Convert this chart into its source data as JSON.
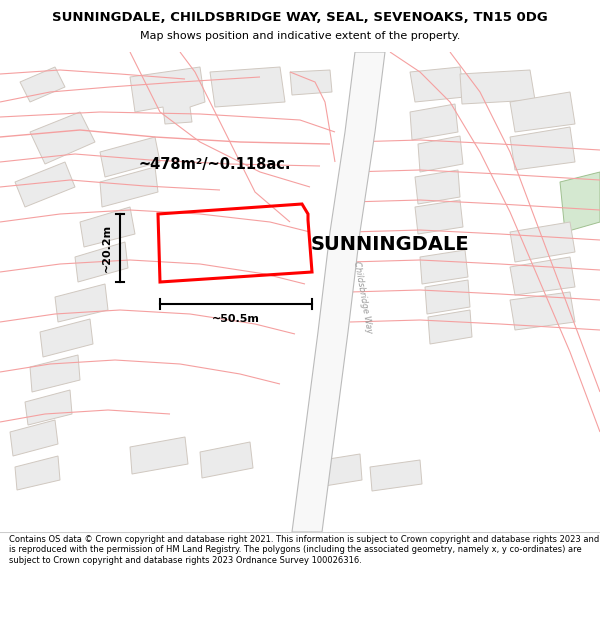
{
  "title": "SUNNINGDALE, CHILDSBRIDGE WAY, SEAL, SEVENOAKS, TN15 0DG",
  "subtitle": "Map shows position and indicative extent of the property.",
  "property_label": "SUNNINGDALE",
  "area_label": "~478m²/~0.118ac.",
  "width_label": "~50.5m",
  "height_label": "~20.2m",
  "footer_text": "Contains OS data © Crown copyright and database right 2021. This information is subject to Crown copyright and database rights 2023 and is reproduced with the permission of HM Land Registry. The polygons (including the associated geometry, namely x, y co-ordinates) are subject to Crown copyright and database rights 2023 Ordnance Survey 100026316.",
  "map_bg": "#ffffff",
  "plot_color": "#ff0000",
  "road_color": "#f5a0a0",
  "block_fill": "#ebebeb",
  "block_edge": "#d0c8c0",
  "road_way_fill": "#ffffff",
  "road_way_edge": "#aaaaaa",
  "green_fill": "#d4e8d0",
  "fig_width": 6.0,
  "fig_height": 6.25
}
